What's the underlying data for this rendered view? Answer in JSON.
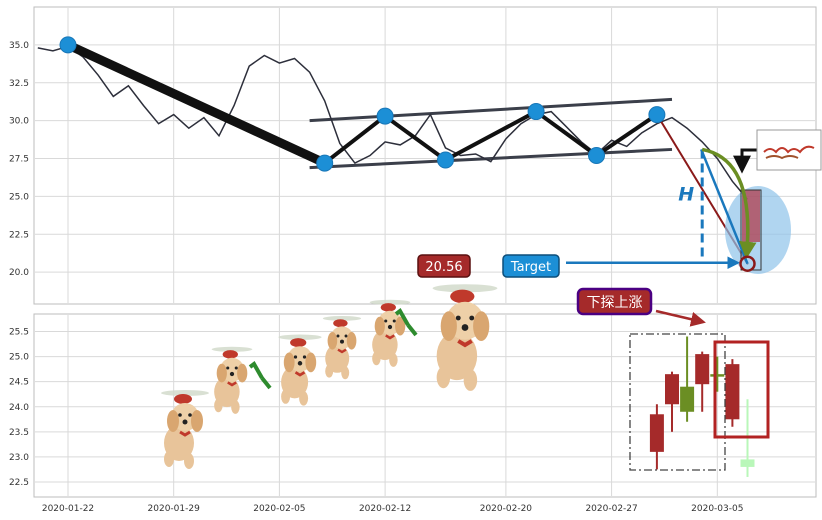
{
  "chart_data": [
    {
      "type": "line",
      "panel": "top",
      "ylim": [
        17.9,
        37.5
      ],
      "yticks": [
        "35.0",
        "32.5",
        "30.0",
        "27.5",
        "25.0",
        "22.5",
        "20.0"
      ],
      "ytick_values": [
        35.0,
        32.5,
        30.0,
        27.5,
        25.0,
        22.5,
        20.0
      ],
      "price_series": [
        [
          "2020-01-20",
          34.8
        ],
        [
          "2020-01-21",
          34.6
        ],
        [
          "2020-01-22",
          34.9
        ],
        [
          "2020-01-23",
          34.2
        ],
        [
          "2020-01-24",
          33.0
        ],
        [
          "2020-01-25",
          31.6
        ],
        [
          "2020-01-26",
          32.3
        ],
        [
          "2020-01-27",
          31.0
        ],
        [
          "2020-01-28",
          29.8
        ],
        [
          "2020-01-29",
          30.4
        ],
        [
          "2020-01-30",
          29.5
        ],
        [
          "2020-01-31",
          30.2
        ],
        [
          "2020-02-01",
          29.0
        ],
        [
          "2020-02-02",
          31.0
        ],
        [
          "2020-02-03",
          33.6
        ],
        [
          "2020-02-04",
          34.3
        ],
        [
          "2020-02-05",
          33.8
        ],
        [
          "2020-02-06",
          34.1
        ],
        [
          "2020-02-07",
          33.2
        ],
        [
          "2020-02-08",
          31.3
        ],
        [
          "2020-02-09",
          28.5
        ],
        [
          "2020-02-10",
          27.2
        ],
        [
          "2020-02-11",
          27.7
        ],
        [
          "2020-02-12",
          28.6
        ],
        [
          "2020-02-13",
          28.4
        ],
        [
          "2020-02-14",
          29.0
        ],
        [
          "2020-02-15",
          30.4
        ],
        [
          "2020-02-16",
          28.2
        ],
        [
          "2020-02-17",
          27.7
        ],
        [
          "2020-02-18",
          27.8
        ],
        [
          "2020-02-19",
          27.3
        ],
        [
          "2020-02-20",
          28.8
        ],
        [
          "2020-02-21",
          29.8
        ],
        [
          "2020-02-22",
          30.4
        ],
        [
          "2020-02-23",
          30.6
        ],
        [
          "2020-02-24",
          29.6
        ],
        [
          "2020-02-25",
          28.6
        ],
        [
          "2020-02-26",
          27.8
        ],
        [
          "2020-02-27",
          28.7
        ],
        [
          "2020-02-28",
          28.3
        ],
        [
          "2020-02-29",
          29.2
        ],
        [
          "2020-03-01",
          29.8
        ],
        [
          "2020-03-02",
          30.2
        ],
        [
          "2020-03-03",
          29.5
        ],
        [
          "2020-03-04",
          28.6
        ],
        [
          "2020-03-05",
          27.5
        ],
        [
          "2020-03-06",
          26.0
        ],
        [
          "2020-03-07",
          24.8
        ]
      ],
      "pivots": [
        [
          "2020-01-22",
          35.0
        ],
        [
          "2020-02-08",
          27.2
        ],
        [
          "2020-02-12",
          30.3
        ],
        [
          "2020-02-16",
          27.4
        ],
        [
          "2020-02-22",
          30.6
        ],
        [
          "2020-02-26",
          27.7
        ],
        [
          "2020-03-01",
          30.4
        ],
        [
          "2020-03-07",
          20.56
        ]
      ],
      "upper_channel": [
        [
          "2020-02-07",
          30.0
        ],
        [
          "2020-03-02",
          31.4
        ]
      ],
      "lower_channel": [
        [
          "2020-02-07",
          26.9
        ],
        [
          "2020-03-02",
          28.1
        ]
      ],
      "head_label": "H",
      "target_value": 20.56,
      "target_value_label": "20.56",
      "target_label": "Target",
      "colors": {
        "price": "#2d2f3b",
        "pivot": "#1c8fd6",
        "channel": "#3b3f4a",
        "target": "#1a78bd",
        "green_arrow": "#6b8e23",
        "value_badge": "#a52a2a"
      }
    },
    {
      "type": "candlestick",
      "panel": "bottom",
      "ylim": [
        22.2,
        25.85
      ],
      "yticks": [
        "25.5",
        "25.0",
        "24.5",
        "24.0",
        "23.5",
        "23.0",
        "22.5"
      ],
      "ytick_values": [
        25.5,
        25.0,
        24.5,
        24.0,
        23.5,
        23.0,
        22.5
      ],
      "candles": [
        {
          "date": "2020-03-01",
          "open": 23.1,
          "close": 23.85,
          "high": 24.05,
          "low": 22.75,
          "color": "#a52a2a"
        },
        {
          "date": "2020-03-02",
          "open": 24.05,
          "close": 24.65,
          "high": 24.7,
          "low": 23.5,
          "color": "#a52a2a"
        },
        {
          "date": "2020-03-03",
          "open": 24.4,
          "close": 23.9,
          "high": 25.4,
          "low": 23.7,
          "color": "#6b8e23"
        },
        {
          "date": "2020-03-04",
          "open": 24.45,
          "close": 25.05,
          "high": 25.1,
          "low": 23.9,
          "color": "#a52a2a"
        },
        {
          "date": "2020-03-05",
          "open": 24.65,
          "close": 24.6,
          "high": 25.0,
          "low": 24.3,
          "color": "#6b8e23"
        },
        {
          "date": "2020-03-06",
          "open": 23.75,
          "close": 24.85,
          "high": 24.95,
          "low": 23.6,
          "color": "#a52a2a"
        },
        {
          "date": "2020-03-07",
          "open": 22.95,
          "close": 22.8,
          "high": 24.15,
          "low": 22.6,
          "color": "#b9f7b9"
        }
      ],
      "pattern_label": "下探上涨",
      "colors": {
        "pattern_badge": "#a52a2a",
        "pattern_border": "#4b0082",
        "highlight_box": "#b22222"
      }
    }
  ],
  "x_axis": {
    "ticks": [
      "2020-01-22",
      "2020-01-29",
      "2020-02-05",
      "2020-02-12",
      "2020-02-20",
      "2020-02-27",
      "2020-03-05"
    ]
  },
  "decorations": {
    "dogs": [
      "flying-dog",
      "flying-dog",
      "flying-dog",
      "flying-dog",
      "flying-dog",
      "flying-dog",
      "flying-dog"
    ],
    "thumbnail": "reindeer-sleigh-thumbnail"
  }
}
